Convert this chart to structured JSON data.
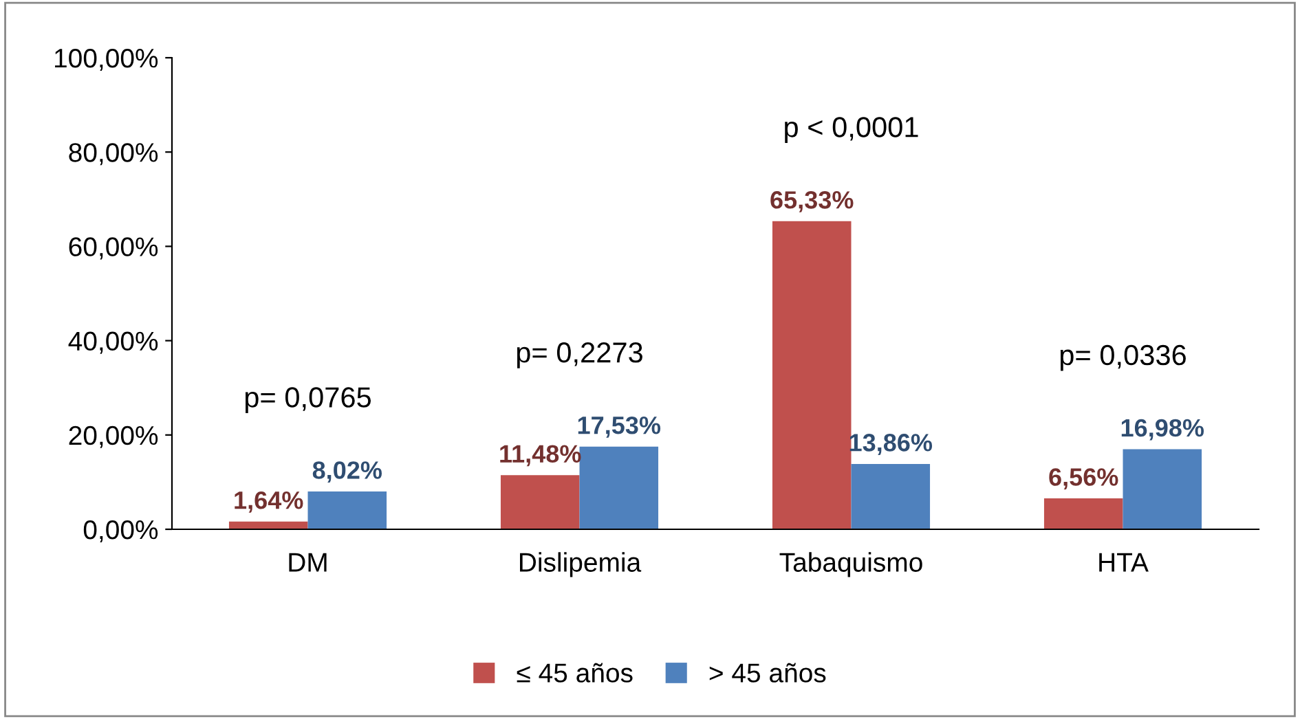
{
  "chart_data": {
    "type": "bar",
    "categories": [
      "DM",
      "Dislipemia",
      "Tabaquismo",
      "HTA"
    ],
    "series": [
      {
        "name": "≤ 45 años",
        "color": "#c0504d",
        "values": [
          1.64,
          11.48,
          65.33,
          6.56
        ],
        "value_labels": [
          "1,64%",
          "11,48%",
          "65,33%",
          "6,56%"
        ]
      },
      {
        "name": "> 45 años",
        "color": "#4f81bd",
        "values": [
          8.02,
          17.53,
          13.86,
          16.98
        ],
        "value_labels": [
          "8,02%",
          "17,53%",
          "13,86%",
          "16,98%"
        ]
      }
    ],
    "ylim": [
      0,
      100
    ],
    "yticks": [
      {
        "value": 0,
        "label": "0,00%"
      },
      {
        "value": 20,
        "label": "20,00%"
      },
      {
        "value": 40,
        "label": "40,00%"
      },
      {
        "value": 60,
        "label": "60,00%"
      },
      {
        "value": 80,
        "label": "80,00%"
      },
      {
        "value": 100,
        "label": "100,00%"
      }
    ],
    "annotations": [
      "p= 0,0765",
      "p= 0,2273",
      "p < 0,0001",
      "p= 0,0336"
    ],
    "grid": false,
    "legend": "bottom"
  }
}
